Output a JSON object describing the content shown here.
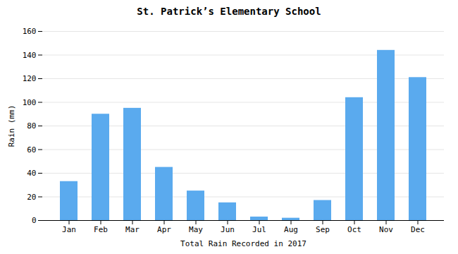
{
  "chart_data": {
    "type": "bar",
    "title": "St. Patrick’s Elementary School",
    "xlabel": "Total Rain Recorded in 2017",
    "ylabel": "Rain (mm)",
    "categories": [
      "Jan",
      "Feb",
      "Mar",
      "Apr",
      "May",
      "Jun",
      "Jul",
      "Aug",
      "Sep",
      "Oct",
      "Nov",
      "Dec"
    ],
    "values": [
      33,
      90,
      95,
      45,
      25,
      15,
      3,
      2,
      17,
      104,
      144,
      121
    ],
    "color": "#5aaaee",
    "ylim": [
      0,
      160
    ],
    "yticks": [
      0,
      20,
      40,
      60,
      80,
      100,
      120,
      140,
      160
    ],
    "grid": true
  }
}
